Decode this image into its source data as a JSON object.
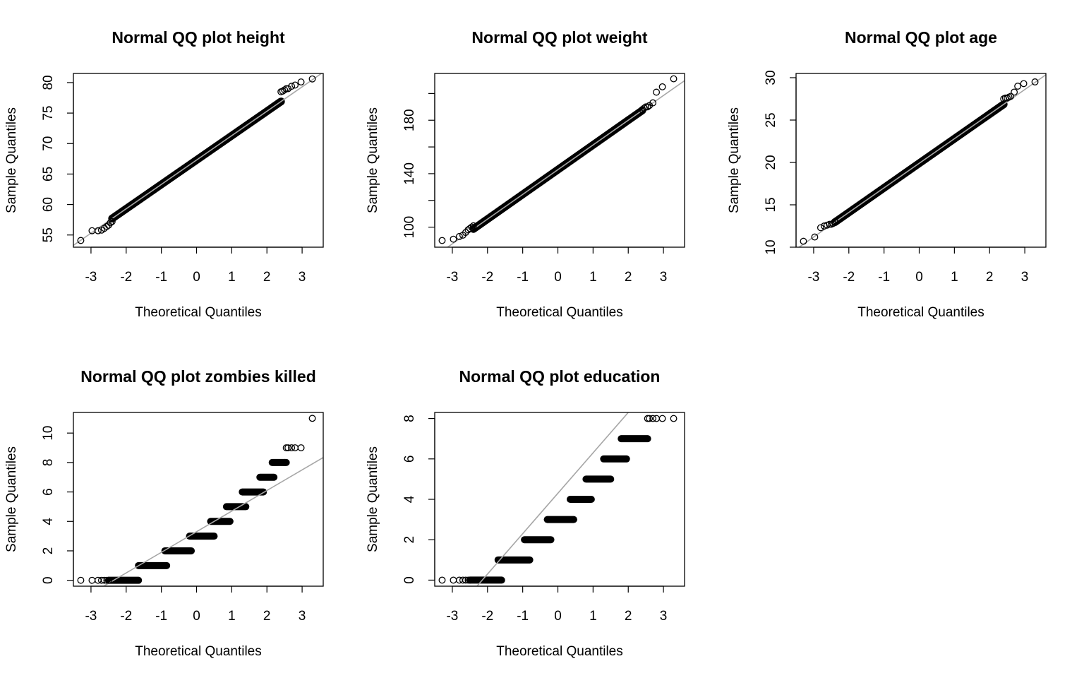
{
  "chart_data": [
    {
      "type": "scatter",
      "title": "Normal QQ plot height",
      "xlabel": "Theoretical Quantiles",
      "ylabel": "Sample Quantiles",
      "xlim": [
        -3.5,
        3.6
      ],
      "ylim": [
        53,
        81.5
      ],
      "xticks": [
        -3,
        -2,
        -1,
        0,
        1,
        2,
        3
      ],
      "yticks": [
        55,
        60,
        65,
        70,
        75,
        80
      ],
      "grid": false,
      "point_style": "open-circle",
      "reference_line": {
        "color": "#a6a6a6",
        "slope": 4.0,
        "intercept": 67.3
      },
      "x": [
        -3.29,
        -2.97,
        -2.8,
        -2.7,
        -2.62,
        -2.55,
        -2.5,
        -2.45,
        -2.4,
        2.4,
        2.45,
        2.5,
        2.55,
        2.6,
        2.7,
        2.8,
        2.97,
        3.29
      ],
      "y": [
        54.1,
        55.7,
        55.7,
        55.8,
        56.1,
        56.4,
        56.6,
        57.0,
        57.2,
        78.5,
        78.6,
        78.8,
        79.0,
        79.0,
        79.4,
        79.6,
        80.1,
        80.6
      ],
      "bulk": {
        "x_from": -2.4,
        "x_to": 2.4,
        "slope": 4.0,
        "intercept": 67.3
      }
    },
    {
      "type": "scatter",
      "title": "Normal QQ plot weight",
      "xlabel": "Theoretical Quantiles",
      "ylabel": "Sample Quantiles",
      "xlim": [
        -3.5,
        3.6
      ],
      "ylim": [
        85,
        215
      ],
      "xticks": [
        -3,
        -2,
        -1,
        0,
        1,
        2,
        3
      ],
      "yticks": [
        100,
        140,
        180
      ],
      "yticks_unlabeled": [
        120,
        160,
        200
      ],
      "grid": false,
      "point_style": "open-circle",
      "reference_line": {
        "color": "#a6a6a6",
        "slope": 18.5,
        "intercept": 143.0
      },
      "x": [
        -3.29,
        -2.97,
        -2.8,
        -2.7,
        -2.62,
        -2.55,
        -2.5,
        -2.45,
        -2.4,
        2.4,
        2.45,
        2.5,
        2.55,
        2.6,
        2.7,
        2.8,
        2.97,
        3.29
      ],
      "y": [
        90,
        91,
        93,
        94,
        96,
        98,
        99,
        100,
        101,
        188,
        189,
        190,
        190,
        191,
        193,
        201,
        205,
        211
      ],
      "bulk": {
        "x_from": -2.4,
        "x_to": 2.4,
        "slope": 18.5,
        "intercept": 143.0
      }
    },
    {
      "type": "scatter",
      "title": "Normal QQ plot age",
      "xlabel": "Theoretical Quantiles",
      "ylabel": "Sample Quantiles",
      "xlim": [
        -3.5,
        3.6
      ],
      "ylim": [
        10,
        30.5
      ],
      "xticks": [
        -3,
        -2,
        -1,
        0,
        1,
        2,
        3
      ],
      "yticks": [
        10,
        15,
        20,
        25,
        30
      ],
      "grid": false,
      "point_style": "open-circle",
      "reference_line": {
        "color": "#a6a6a6",
        "slope": 2.9,
        "intercept": 19.9
      },
      "x": [
        -3.29,
        -2.97,
        -2.8,
        -2.7,
        -2.62,
        -2.55,
        -2.5,
        -2.45,
        -2.4,
        2.4,
        2.45,
        2.5,
        2.55,
        2.6,
        2.7,
        2.8,
        2.97,
        3.29
      ],
      "y": [
        10.7,
        11.2,
        12.3,
        12.5,
        12.6,
        12.7,
        12.7,
        12.8,
        13.0,
        27.5,
        27.6,
        27.6,
        27.7,
        27.8,
        28.3,
        29.0,
        29.3,
        29.5
      ],
      "bulk": {
        "x_from": -2.4,
        "x_to": 2.4,
        "slope": 2.9,
        "intercept": 19.9
      }
    },
    {
      "type": "scatter",
      "title": "Normal QQ plot zombies killed",
      "xlabel": "Theoretical Quantiles",
      "ylabel": "Sample Quantiles",
      "xlim": [
        -3.5,
        3.6
      ],
      "ylim": [
        -0.4,
        11.4
      ],
      "xticks": [
        -3,
        -2,
        -1,
        0,
        1,
        2,
        3
      ],
      "yticks": [
        0,
        2,
        4,
        6,
        8,
        10
      ],
      "grid": false,
      "point_style": "open-circle",
      "reference_line": {
        "color": "#a6a6a6",
        "slope": 1.4,
        "intercept": 3.3
      },
      "x": [
        -3.29,
        -2.97,
        -2.8,
        -2.7,
        -2.62,
        -2.55,
        -2.5,
        2.5,
        2.55,
        2.6,
        2.7,
        2.8,
        2.97,
        3.29
      ],
      "y": [
        0,
        0,
        0,
        0,
        0,
        0,
        0,
        8,
        9,
        9,
        9,
        9,
        9,
        11
      ],
      "bands": [
        {
          "value": 0,
          "x_from": -2.5,
          "x_to": -1.65
        },
        {
          "value": 1,
          "x_from": -1.65,
          "x_to": -0.85
        },
        {
          "value": 2,
          "x_from": -0.9,
          "x_to": -0.15
        },
        {
          "value": 3,
          "x_from": -0.2,
          "x_to": 0.5
        },
        {
          "value": 4,
          "x_from": 0.4,
          "x_to": 0.95
        },
        {
          "value": 5,
          "x_from": 0.85,
          "x_to": 1.4
        },
        {
          "value": 6,
          "x_from": 1.3,
          "x_to": 1.9
        },
        {
          "value": 7,
          "x_from": 1.8,
          "x_to": 2.2
        },
        {
          "value": 8,
          "x_from": 2.15,
          "x_to": 2.55
        }
      ]
    },
    {
      "type": "scatter",
      "title": "Normal QQ plot education",
      "xlabel": "Theoretical Quantiles",
      "ylabel": "Sample Quantiles",
      "xlim": [
        -3.5,
        3.6
      ],
      "ylim": [
        -0.3,
        8.3
      ],
      "xticks": [
        -3,
        -2,
        -1,
        0,
        1,
        2,
        3
      ],
      "yticks": [
        0,
        2,
        4,
        6,
        8
      ],
      "grid": false,
      "point_style": "open-circle",
      "reference_line": {
        "color": "#a6a6a6",
        "slope": 2.0,
        "intercept": 4.3
      },
      "x": [
        -3.29,
        -2.97,
        -2.8,
        -2.7,
        -2.62,
        -2.55,
        -2.5,
        2.55,
        2.6,
        2.7,
        2.8,
        2.97,
        3.29
      ],
      "y": [
        0,
        0,
        0,
        0,
        0,
        0,
        0,
        8,
        8,
        8,
        8,
        8,
        8
      ],
      "bands": [
        {
          "value": 0,
          "x_from": -2.5,
          "x_to": -1.6
        },
        {
          "value": 1,
          "x_from": -1.7,
          "x_to": -0.8
        },
        {
          "value": 2,
          "x_from": -0.95,
          "x_to": -0.2
        },
        {
          "value": 3,
          "x_from": -0.3,
          "x_to": 0.45
        },
        {
          "value": 4,
          "x_from": 0.35,
          "x_to": 0.95
        },
        {
          "value": 5,
          "x_from": 0.8,
          "x_to": 1.5
        },
        {
          "value": 6,
          "x_from": 1.3,
          "x_to": 1.95
        },
        {
          "value": 7,
          "x_from": 1.8,
          "x_to": 2.55
        }
      ]
    }
  ]
}
